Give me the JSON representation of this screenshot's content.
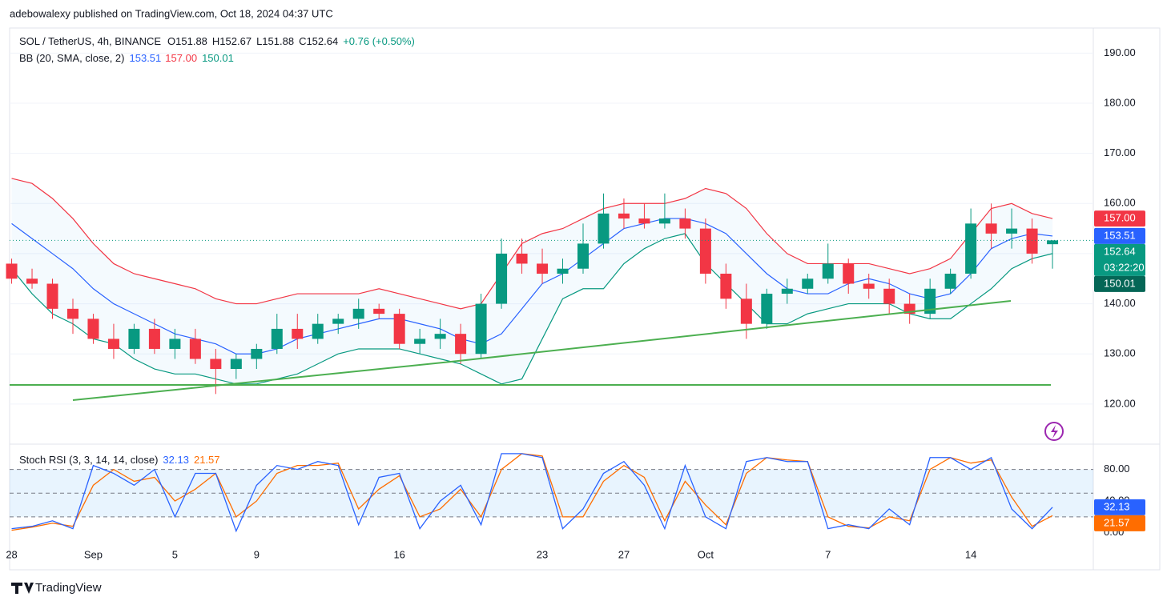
{
  "header": {
    "published": "adebowalexy published on TradingView.com, Oct 18, 2024 04:37 UTC"
  },
  "footer": {
    "brand": "TradingView"
  },
  "chart_data": [
    {
      "type": "candlestick",
      "title": "SOL / TetherUS, 4h, BINANCE",
      "ohlc_legend": [
        "O151.88",
        "H152.67",
        "L151.88",
        "C152.64",
        "+0.76 (+0.50%)"
      ],
      "indicator": "BB (20, SMA, close, 2)",
      "indicator_values": [
        "153.51",
        "157.00",
        "150.01"
      ],
      "countdown": "03:22:20",
      "x": [
        0,
        1,
        2,
        3,
        4,
        5,
        6,
        7,
        8,
        9,
        10,
        11,
        12,
        13,
        14,
        15,
        16,
        17,
        18,
        19,
        20,
        21,
        22,
        23,
        24,
        25,
        26,
        27,
        28,
        29,
        30,
        31,
        32,
        33,
        34,
        35,
        36,
        37,
        38,
        39,
        40,
        41,
        42,
        43,
        44,
        45,
        46,
        47,
        48,
        49,
        50,
        51
      ],
      "open": [
        148,
        145,
        144,
        139,
        137,
        133,
        131,
        135,
        131,
        133,
        129,
        127,
        129,
        131,
        135,
        133,
        136,
        137,
        139,
        138,
        132,
        133,
        134,
        130,
        140,
        150,
        148,
        146,
        147,
        152,
        158,
        157,
        156,
        157,
        155,
        146,
        141,
        136,
        142,
        143,
        145,
        148,
        144,
        143,
        140,
        138,
        143,
        146,
        156,
        154,
        155,
        151.88
      ],
      "high": [
        149,
        147,
        145,
        141,
        138,
        136,
        136,
        137,
        135,
        135,
        131,
        130,
        132,
        138,
        138,
        138,
        138,
        141,
        140,
        139,
        135,
        137,
        136,
        142,
        153,
        153,
        151,
        149,
        156,
        162,
        161,
        160,
        162,
        159,
        157,
        148,
        144,
        143,
        145,
        146,
        152,
        149,
        146,
        145,
        142,
        145,
        147,
        159,
        160,
        159,
        157,
        152.67
      ],
      "low": [
        144,
        143,
        137,
        134,
        132,
        129,
        130,
        130,
        129,
        128,
        122,
        125,
        127,
        130,
        131,
        132,
        134,
        135,
        137,
        131,
        130,
        131,
        128,
        129,
        139,
        146,
        144,
        144,
        146,
        151,
        155,
        155,
        155,
        153,
        144,
        139,
        133,
        135,
        140,
        142,
        144,
        142,
        141,
        138,
        136,
        137,
        142,
        145,
        151,
        151,
        148,
        147
      ],
      "close": [
        145,
        144,
        139,
        137,
        133,
        131,
        135,
        131,
        133,
        129,
        127,
        129,
        131,
        135,
        133,
        136,
        137,
        139,
        138,
        132,
        133,
        134,
        130,
        140,
        150,
        148,
        146,
        147,
        152,
        158,
        157,
        156,
        157,
        155,
        146,
        141,
        136,
        142,
        143,
        145,
        148,
        144,
        143,
        140,
        138,
        143,
        146,
        156,
        154,
        155,
        150,
        152.64
      ],
      "upper": [
        165,
        164,
        161,
        157,
        152,
        148,
        146,
        145,
        144,
        143,
        141,
        140,
        140,
        141,
        142,
        142,
        142,
        142,
        143,
        142,
        141,
        140,
        139,
        140,
        146,
        152,
        154,
        155,
        157,
        159,
        160,
        160,
        160,
        161,
        163,
        162,
        159,
        154,
        150,
        148,
        148,
        148,
        148,
        147,
        146,
        147,
        149,
        154,
        159,
        160,
        158,
        157
      ],
      "basis": [
        156,
        153,
        150,
        147,
        143,
        140,
        138,
        136,
        134,
        133,
        132,
        130,
        130,
        131,
        133,
        134,
        135,
        136,
        137,
        137,
        136,
        135,
        133,
        132,
        134,
        139,
        144,
        146,
        149,
        152,
        155,
        156,
        157,
        157,
        156,
        154,
        150,
        146,
        143,
        142,
        142,
        144,
        145,
        144,
        142,
        141,
        142,
        146,
        151,
        153,
        154,
        153.51
      ],
      "lower": [
        147,
        142,
        138,
        136,
        133,
        132,
        129,
        127,
        126,
        126,
        125,
        124,
        124,
        125,
        126,
        128,
        130,
        131,
        131,
        131,
        130,
        129,
        128,
        126,
        124,
        125,
        133,
        141,
        143,
        143,
        148,
        151,
        153,
        154,
        148,
        144,
        140,
        136,
        136,
        138,
        139,
        140,
        140,
        140,
        138,
        137,
        137,
        140,
        143,
        147,
        149,
        150.01
      ],
      "up_color": "#089981",
      "down_color": "#f23645",
      "upper_color": "#f23645",
      "basis_color": "#2962ff",
      "lower_color": "#089981",
      "xlim": [
        -0.1,
        53
      ],
      "ylim": [
        112,
        195
      ],
      "yticks": [
        {
          "value": 120,
          "label": "120.00"
        },
        {
          "value": 130,
          "label": "130.00"
        },
        {
          "value": 140,
          "label": "140.00"
        },
        {
          "value": 150,
          "label": "150.00"
        },
        {
          "value": 160,
          "label": "160.00"
        },
        {
          "value": 170,
          "label": "170.00"
        },
        {
          "value": 180,
          "label": "180.00"
        },
        {
          "value": 190,
          "label": "190.00"
        }
      ],
      "grid": true
    },
    {
      "type": "line",
      "title": "Stoch RSI (3, 3, 14, 14, close)",
      "x": [
        0,
        1,
        2,
        3,
        4,
        5,
        6,
        7,
        8,
        9,
        10,
        11,
        12,
        13,
        14,
        15,
        16,
        17,
        18,
        19,
        20,
        21,
        22,
        23,
        24,
        25,
        26,
        27,
        28,
        29,
        30,
        31,
        32,
        33,
        34,
        35,
        36,
        37,
        38,
        39,
        40,
        41,
        42,
        43,
        44,
        45,
        46,
        47,
        48,
        49,
        50,
        51
      ],
      "series": [
        {
          "color": "#2962ff",
          "values": [
            5,
            8,
            15,
            5,
            85,
            75,
            60,
            80,
            20,
            75,
            75,
            2,
            60,
            85,
            80,
            90,
            85,
            10,
            70,
            75,
            5,
            40,
            60,
            10,
            100,
            100,
            95,
            5,
            30,
            75,
            90,
            60,
            5,
            85,
            20,
            5,
            90,
            95,
            90,
            90,
            5,
            10,
            5,
            30,
            10,
            95,
            95,
            80,
            95,
            30,
            5,
            32.13
          ]
        },
        {
          "color": "#ff6d00",
          "values": [
            3,
            7,
            12,
            8,
            60,
            80,
            65,
            70,
            40,
            55,
            75,
            20,
            40,
            75,
            85,
            85,
            88,
            30,
            55,
            72,
            20,
            30,
            55,
            20,
            80,
            100,
            97,
            20,
            20,
            65,
            85,
            70,
            15,
            65,
            35,
            10,
            75,
            95,
            92,
            90,
            20,
            8,
            6,
            20,
            15,
            80,
            95,
            88,
            92,
            45,
            8,
            21.57
          ]
        }
      ],
      "xlim": [
        -0.1,
        53
      ],
      "ylim": [
        -47,
        112
      ],
      "xticks": [
        {
          "value": 0,
          "label": "28"
        },
        {
          "value": 4,
          "label": "Sep"
        },
        {
          "value": 8,
          "label": "5"
        },
        {
          "value": 12,
          "label": "9"
        },
        {
          "value": 19,
          "label": "16"
        },
        {
          "value": 26,
          "label": "23"
        },
        {
          "value": 30,
          "label": "27"
        },
        {
          "value": 34,
          "label": "Oct"
        },
        {
          "value": 40,
          "label": "7"
        },
        {
          "value": 47,
          "label": "14"
        }
      ],
      "yticks": [
        {
          "value": 80,
          "label": "80.00"
        },
        {
          "value": 40,
          "label": "40.00"
        },
        {
          "value": 0,
          "label": "0.00"
        }
      ],
      "levels": [
        80,
        50,
        20
      ],
      "band": [
        20,
        80
      ],
      "band_color": "#2196f3"
    }
  ]
}
